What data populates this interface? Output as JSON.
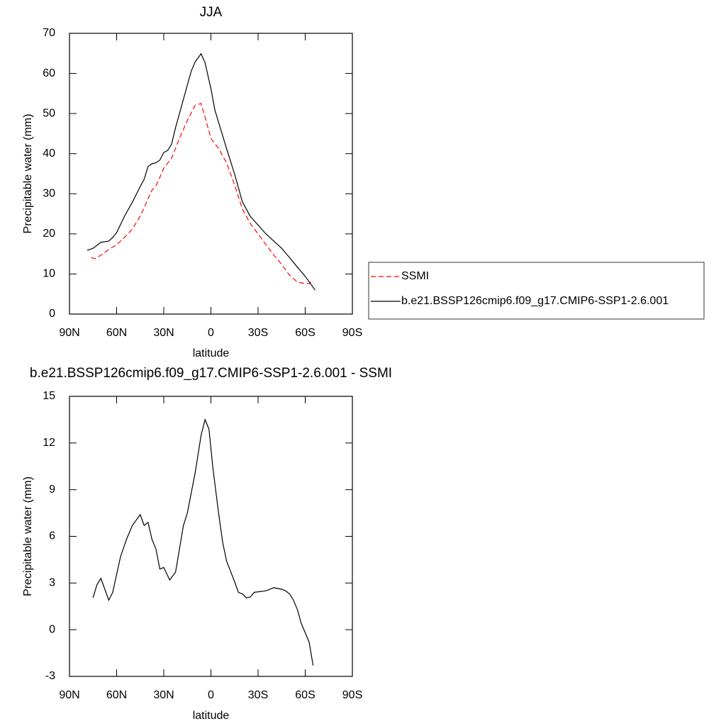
{
  "chart_data": [
    {
      "type": "line",
      "title": "JJA",
      "x_label": "latitude",
      "y_label": "Precipitable water (mm)",
      "xlim": [
        90,
        -90
      ],
      "xticks": [
        {
          "value": 90,
          "label": "90N"
        },
        {
          "value": 60,
          "label": "60N"
        },
        {
          "value": 30,
          "label": "30N"
        },
        0,
        {
          "value": -30,
          "label": "30S"
        },
        {
          "value": -60,
          "label": "60S"
        },
        {
          "value": -90,
          "label": "90S"
        }
      ],
      "ylim": [
        0,
        70
      ],
      "yticks": [
        0,
        10,
        20,
        30,
        40,
        50,
        60,
        70
      ],
      "series": [
        {
          "name": "SSMI",
          "color": "#ff0000",
          "dash": "dashed",
          "x": [
            76.25,
            73.75,
            70,
            65,
            60,
            55,
            50,
            45,
            42.5,
            40,
            37.5,
            35,
            32.5,
            30,
            25,
            20,
            15,
            10,
            6.25,
            3.75,
            0,
            -5,
            -10,
            -15,
            -20,
            -25,
            -30,
            -35,
            -40,
            -45,
            -50,
            -55,
            -60,
            -62.5,
            -65
          ],
          "values": [
            14.1,
            13.8,
            14.7,
            16.1,
            17.3,
            19.1,
            21.2,
            24.4,
            26.5,
            28.8,
            30.9,
            32,
            34.1,
            36.4,
            38.9,
            43.8,
            48.3,
            52.1,
            52.5,
            49.1,
            43.8,
            41.2,
            37.7,
            32.3,
            26.2,
            22.6,
            20,
            17.3,
            14.7,
            12.4,
            9.7,
            8,
            7.6,
            7.6,
            8.5
          ]
        },
        {
          "name": "b.e21.BSSP126cmip6.f09_g17.CMIP6-SSP1-2.6.001",
          "color": "#000000",
          "dash": "solid",
          "x": [
            78.75,
            75,
            70,
            65,
            62.5,
            60,
            55,
            50,
            45,
            42.5,
            40,
            37.5,
            35,
            32.5,
            30,
            27.5,
            25,
            22.5,
            20,
            15,
            12.5,
            10,
            6.25,
            3.75,
            0,
            -2.5,
            -10,
            -15,
            -20,
            -25,
            -35,
            -40,
            -45,
            -50,
            -55,
            -60,
            -66.25
          ],
          "values": [
            15.9,
            16.4,
            17.9,
            18.2,
            19.1,
            20.3,
            24.4,
            27.9,
            31.8,
            33.6,
            36.8,
            37.5,
            37.7,
            38.4,
            40.3,
            40.8,
            42.4,
            46.5,
            50,
            57.1,
            60.6,
            62.9,
            64.9,
            62.7,
            56.2,
            50.9,
            41.2,
            35,
            28,
            24.4,
            20,
            18.2,
            16.4,
            14.1,
            11.7,
            9.4,
            6
          ]
        }
      ]
    },
    {
      "type": "line",
      "title": "b.e21.BSSP126cmip6.f09_g17.CMIP6-SSP1-2.6.001 - SSMI",
      "x_label": "latitude",
      "y_label": "Precipitable water (mm)",
      "xlim": [
        90,
        -90
      ],
      "xticks": [
        {
          "value": 90,
          "label": "90N"
        },
        {
          "value": 60,
          "label": "60N"
        },
        {
          "value": 30,
          "label": "30N"
        },
        0,
        {
          "value": -30,
          "label": "30S"
        },
        {
          "value": -60,
          "label": "60S"
        },
        {
          "value": -90,
          "label": "90S"
        }
      ],
      "ylim": [
        -3,
        15
      ],
      "yticks": [
        -3,
        0,
        3,
        6,
        9,
        12,
        15
      ],
      "series": [
        {
          "color": "#000000",
          "dash": "solid",
          "x": [
            75,
            72.5,
            70,
            67.5,
            65,
            62.5,
            57.5,
            53.75,
            50,
            45,
            42.5,
            40,
            37.5,
            35,
            32.5,
            30,
            26.25,
            22.5,
            20,
            17.5,
            15,
            10,
            6.25,
            3.75,
            1.25,
            -1.25,
            -5,
            -7.5,
            -10,
            -15,
            -17.5,
            -20,
            -22.5,
            -25,
            -27.5,
            -35,
            -40,
            -45,
            -47.5,
            -50,
            -52.5,
            -55,
            -57.5,
            -62.5,
            -65
          ],
          "values": [
            2.05,
            2.9,
            3.3,
            2.6,
            1.9,
            2.4,
            4.7,
            5.8,
            6.7,
            7.4,
            6.7,
            6.9,
            5.8,
            5.2,
            3.9,
            4,
            3.2,
            3.7,
            5.2,
            6.7,
            7.5,
            10.1,
            12.5,
            13.5,
            12.9,
            10.4,
            7.4,
            5.6,
            4.4,
            3.1,
            2.4,
            2.3,
            2.05,
            2.1,
            2.4,
            2.5,
            2.7,
            2.6,
            2.5,
            2.3,
            1.9,
            1.3,
            0.4,
            -0.8,
            -2.3
          ]
        }
      ]
    }
  ]
}
